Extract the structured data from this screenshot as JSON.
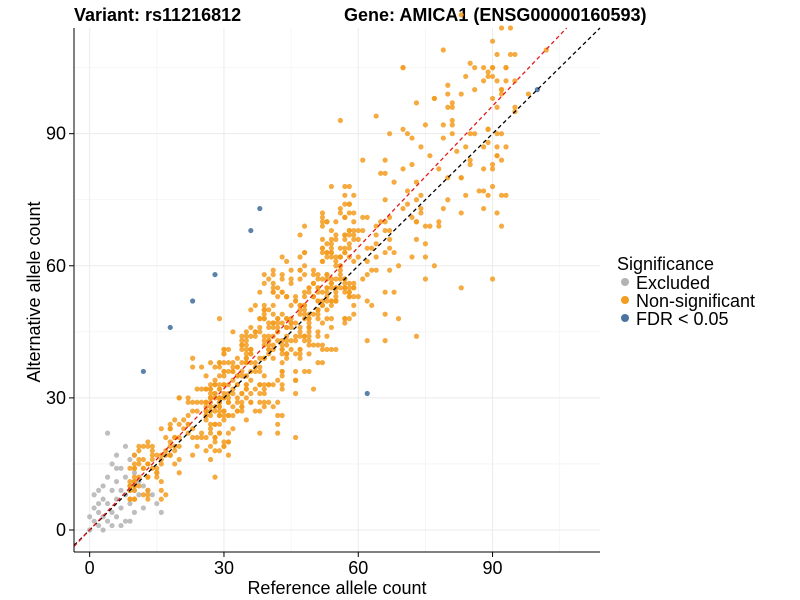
{
  "titles": {
    "variant": "Variant: rs11216812",
    "gene": "Gene: AMICA1 (ENSG00000160593)"
  },
  "chart_data": {
    "type": "scatter",
    "xlabel": "Reference allele count",
    "ylabel": "Alternative allele count",
    "xlim": [
      -3.5,
      114
    ],
    "ylim": [
      -5,
      114
    ],
    "xticks": [
      0,
      30,
      60,
      90
    ],
    "yticks": [
      0,
      30,
      60,
      90
    ],
    "grid": true,
    "legend": {
      "title": "Significance",
      "placement": "right",
      "entries": [
        {
          "label": "Excluded",
          "color": "#b3b3b3"
        },
        {
          "label": "Non-significant",
          "color": "#f39c1f"
        },
        {
          "label": "FDR < 0.05",
          "color": "#4a74a0"
        }
      ]
    },
    "reference_lines": [
      {
        "name": "identity",
        "color": "#000000",
        "dash": "dashed",
        "slope": 1,
        "intercept": 0
      },
      {
        "name": "fit",
        "color": "#e31a1c",
        "dash": "dashed",
        "slope": 1.07,
        "intercept": 0
      }
    ],
    "series": [
      {
        "name": "FDR < 0.05",
        "color": "#4a74a0",
        "points": [
          [
            38,
            73
          ],
          [
            36,
            68
          ],
          [
            28,
            58
          ],
          [
            23,
            52
          ],
          [
            18,
            46
          ],
          [
            12,
            36
          ],
          [
            62,
            31
          ],
          [
            100,
            100
          ]
        ]
      },
      {
        "name": "Excluded",
        "color": "#b3b3b3",
        "points": [
          [
            0,
            0
          ],
          [
            1,
            2
          ],
          [
            2,
            1
          ],
          [
            1,
            5
          ],
          [
            2,
            4
          ],
          [
            3,
            3
          ],
          [
            3,
            7
          ],
          [
            4,
            2
          ],
          [
            4,
            6
          ],
          [
            5,
            1
          ],
          [
            5,
            4
          ],
          [
            5,
            9
          ],
          [
            6,
            3
          ],
          [
            6,
            7
          ],
          [
            6,
            11
          ],
          [
            7,
            5
          ],
          [
            7,
            9
          ],
          [
            7,
            14
          ],
          [
            8,
            2
          ],
          [
            8,
            8
          ],
          [
            8,
            12
          ],
          [
            9,
            6
          ],
          [
            9,
            10
          ],
          [
            9,
            16
          ],
          [
            10,
            4
          ],
          [
            10,
            9
          ],
          [
            10,
            13
          ],
          [
            11,
            8
          ],
          [
            11,
            11
          ],
          [
            12,
            5
          ],
          [
            12,
            10
          ],
          [
            13,
            9
          ],
          [
            14,
            8
          ],
          [
            15,
            6
          ],
          [
            16,
            4
          ],
          [
            3,
            10
          ],
          [
            4,
            12
          ],
          [
            5,
            15
          ],
          [
            6,
            17
          ],
          [
            2,
            9
          ],
          [
            3,
            0
          ],
          [
            4,
            22
          ],
          [
            1,
            8
          ],
          [
            2,
            6
          ],
          [
            0,
            3
          ],
          [
            7,
            1
          ],
          [
            9,
            2
          ],
          [
            6,
            14
          ],
          [
            8,
            19
          ],
          [
            10,
            17
          ]
        ]
      }
    ],
    "nonsignificant_model": {
      "n": 780,
      "x_range": [
        9,
        95
      ],
      "slope": 1.04,
      "spread": 6.5
    }
  }
}
